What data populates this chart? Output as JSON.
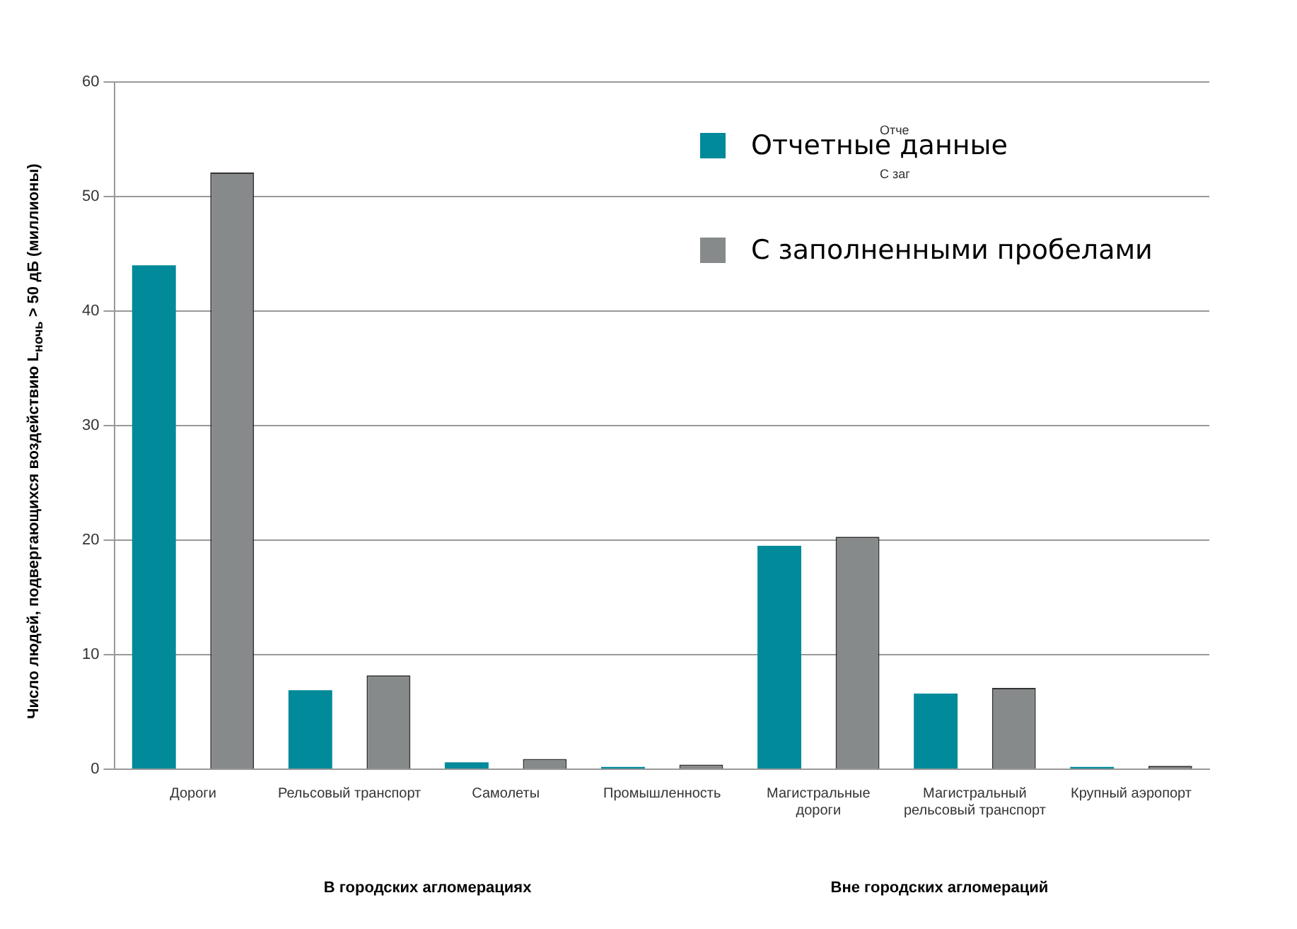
{
  "chart_data": {
    "type": "bar",
    "ylabel": "Число людей, подвергающихся воздействию L$_{ночь}$ > 50 дБ (миллионы)",
    "categories": [
      "Дороги",
      "Рельсовый транспорт",
      "Самолеты",
      "Промышленность",
      "Магистральные дороги",
      "Магистральный рельсовый транспорт",
      "Крупный аэропорт"
    ],
    "series": [
      {
        "name": "Отчетные данные",
        "color": "#008a9a",
        "values": [
          44,
          6.9,
          0.6,
          0.2,
          19.5,
          6.6,
          0.2
        ]
      },
      {
        "name": "С заполненными пробелами",
        "color": "#878a8a",
        "values": [
          52.1,
          8.2,
          0.9,
          0.4,
          20.3,
          7.1,
          0.3
        ]
      }
    ],
    "ylim": [
      0,
      60
    ],
    "yticks": [
      0,
      10,
      20,
      30,
      40,
      50,
      60
    ],
    "grid": "y",
    "legend": "top right",
    "annotations": [
      "В городских агломерациях",
      "Вне городских агломераций",
      "Отче",
      "С заг"
    ]
  }
}
